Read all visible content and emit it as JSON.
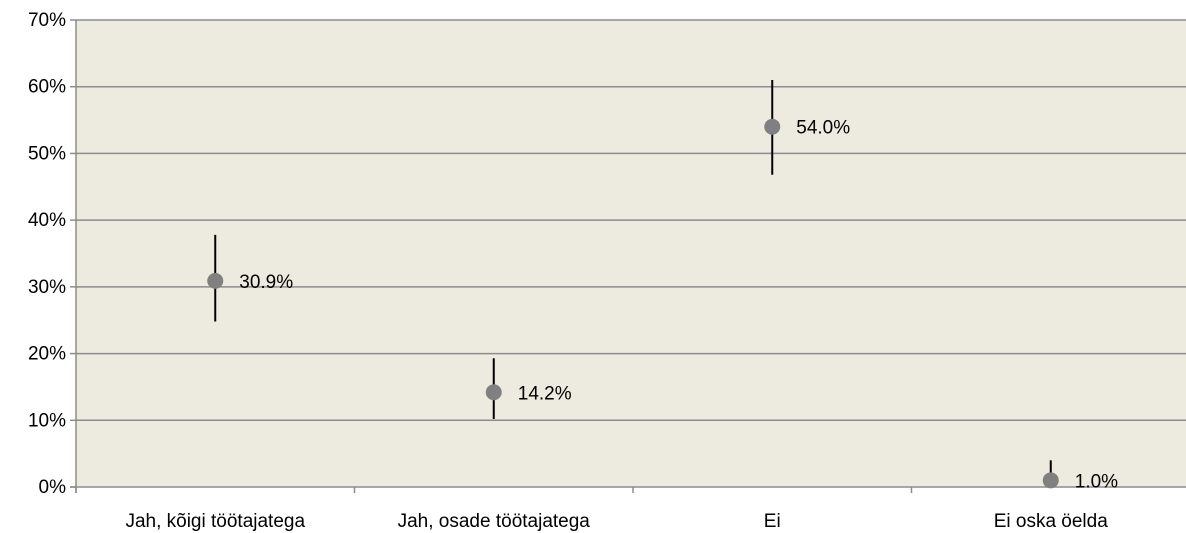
{
  "chart_data": {
    "type": "scatter",
    "categories": [
      "Jah, kõigi töötajatega",
      "Jah, osade töötajatega",
      "Ei",
      "Ei oska öelda"
    ],
    "values": [
      30.9,
      14.2,
      54.0,
      1.0
    ],
    "error_low": [
      24.8,
      10.2,
      46.8,
      0.0
    ],
    "error_high": [
      37.8,
      19.3,
      61.0,
      4.0
    ],
    "data_labels": [
      "30.9%",
      "14.2%",
      "54.0%",
      "1.0%"
    ],
    "ylim": [
      0,
      70
    ],
    "yticks": [
      0,
      10,
      20,
      30,
      40,
      50,
      60,
      70
    ],
    "ytick_labels": [
      "0%",
      "10%",
      "20%",
      "30%",
      "40%",
      "50%",
      "60%",
      "70%"
    ],
    "grid": true,
    "colors": {
      "plot_background": "#EDEADF",
      "marker": "#808080",
      "error_bar": "#000000",
      "gridline": "#8C8C8C",
      "axis": "#8C8C8C"
    }
  }
}
